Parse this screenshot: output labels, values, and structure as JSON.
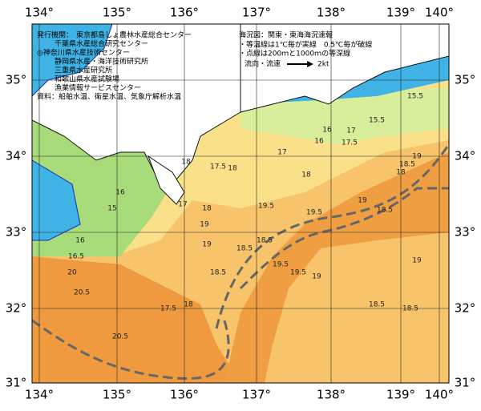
{
  "lon_labels": [
    "134°",
    "135°",
    "136°",
    "137°",
    "138°",
    "139°",
    "140°"
  ],
  "lat_labels": [
    "35°",
    "34°",
    "33°",
    "32°",
    "31°"
  ],
  "publisher": {
    "heading": "発行機関：",
    "lines": [
      "東京都島しょ農林水産総合センター",
      "千葉県水産総合研究センター",
      "◎神奈川県水産技術センター",
      "静岡県水産・海洋技術研究所",
      "三重県水産研究所",
      "和歌山県水産試験場",
      "漁業情報サービスセンター"
    ],
    "source": "資料：船舶水温、衛星水温、気象庁解析水温"
  },
  "legend": {
    "title": "海況図：関東・東海海況速報",
    "notes": [
      "・等温線は1℃毎が実線　0.5℃毎が破線",
      "・点線は200ｍと1000ｍの等深線"
    ],
    "current": "流向・流速",
    "speed": "2kt"
  },
  "contour_labels": [
    "15.5",
    "16",
    "15.5",
    "17",
    "16",
    "17.5",
    "18",
    "16",
    "18",
    "17",
    "17.5",
    "18",
    "18",
    "18.5",
    "19",
    "19",
    "18.5",
    "19.5",
    "19.5",
    "19",
    "18.5",
    "19",
    "18.5",
    "19.5",
    "18.5",
    "20",
    "20.5",
    "19.5",
    "20.5",
    "19",
    "18.5",
    "19",
    "18.5",
    "18",
    "17.5",
    "16",
    "15",
    "16.5",
    "17",
    "18"
  ]
}
